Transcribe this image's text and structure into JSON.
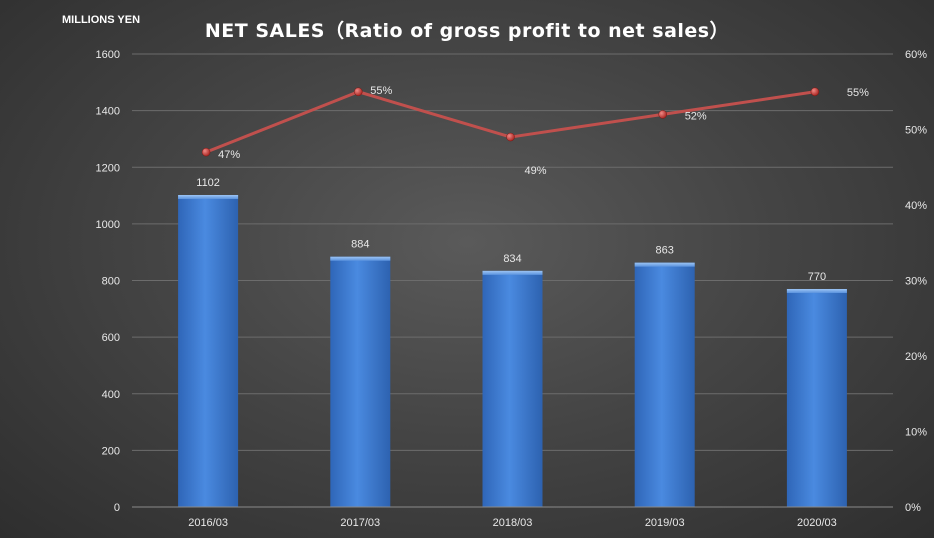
{
  "title": "NET SALES（Ratio of gross profit to net sales）",
  "left_axis_unit": "MILLIONS YEN",
  "colors": {
    "bar_top": "#5b9ae8",
    "bar_bottom": "#2e6bc4",
    "line": "#c0504d",
    "marker": "#c8322e",
    "grid": "#6c6c6c",
    "text": "#e8e8e8"
  },
  "chart_data": {
    "type": "bar",
    "categories": [
      "2016/03",
      "2017/03",
      "2018/03",
      "2019/03",
      "2020/03"
    ],
    "series": [
      {
        "type": "bar",
        "axis": "left",
        "values": [
          1102,
          884,
          834,
          863,
          770
        ],
        "labels": [
          "1102",
          "884",
          "834",
          "863",
          "770"
        ]
      },
      {
        "type": "line",
        "axis": "right",
        "values": [
          47,
          55,
          49,
          52,
          55
        ],
        "labels": [
          "47%",
          "55%",
          "49%",
          "52%",
          "55%"
        ]
      }
    ],
    "ylim": [
      0,
      1600
    ],
    "y_ticks": [
      "0",
      "200",
      "400",
      "600",
      "800",
      "1000",
      "1200",
      "1400",
      "1600"
    ],
    "y2lim": [
      0,
      60
    ],
    "y2_ticks": [
      "0%",
      "10%",
      "20%",
      "30%",
      "40%",
      "50%",
      "60%"
    ],
    "grid": true,
    "legend": "none"
  }
}
